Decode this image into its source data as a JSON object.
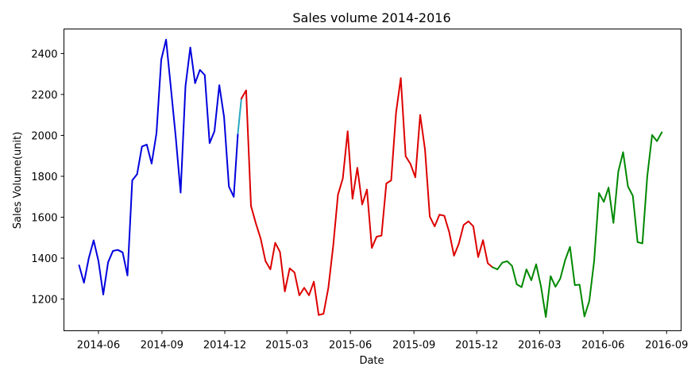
{
  "chart_data": {
    "type": "line",
    "title": "Sales volume 2014-2016",
    "xlabel": "Date",
    "ylabel": "Sales Volume(unit)",
    "grid": false,
    "legend": "none",
    "xlim": [
      "2014-04-12",
      "2016-09-22"
    ],
    "ylim": [
      1045,
      2520
    ],
    "x_ticks": [
      "2014-06",
      "2014-09",
      "2014-12",
      "2015-03",
      "2015-06",
      "2015-09",
      "2015-12",
      "2016-03",
      "2016-06",
      "2016-09"
    ],
    "x_tick_dates": [
      "2014-06-01",
      "2014-09-01",
      "2014-12-01",
      "2015-03-01",
      "2015-06-01",
      "2015-09-01",
      "2015-12-01",
      "2016-03-01",
      "2016-06-01",
      "2016-09-01"
    ],
    "y_ticks": [
      1200,
      1400,
      1600,
      1800,
      2000,
      2200,
      2400
    ],
    "series": [
      {
        "color": "#0000dd",
        "points": [
          [
            "2014-05-04",
            1365
          ],
          [
            "2014-05-11",
            1280
          ],
          [
            "2014-05-18",
            1400
          ],
          [
            "2014-05-25",
            1487
          ],
          [
            "2014-06-01",
            1385
          ],
          [
            "2014-06-08",
            1222
          ],
          [
            "2014-06-15",
            1380
          ],
          [
            "2014-06-22",
            1435
          ],
          [
            "2014-06-29",
            1440
          ],
          [
            "2014-07-06",
            1428
          ],
          [
            "2014-07-13",
            1315
          ],
          [
            "2014-07-20",
            1780
          ],
          [
            "2014-07-27",
            1810
          ],
          [
            "2014-08-03",
            1945
          ],
          [
            "2014-08-10",
            1955
          ],
          [
            "2014-08-17",
            1862
          ],
          [
            "2014-08-24",
            2010
          ],
          [
            "2014-08-31",
            2370
          ],
          [
            "2014-09-07",
            2468
          ],
          [
            "2014-09-14",
            2230
          ],
          [
            "2014-09-21",
            1990
          ],
          [
            "2014-09-28",
            1720
          ],
          [
            "2014-10-05",
            2240
          ],
          [
            "2014-10-12",
            2430
          ],
          [
            "2014-10-19",
            2255
          ],
          [
            "2014-10-26",
            2320
          ],
          [
            "2014-11-02",
            2295
          ],
          [
            "2014-11-09",
            1962
          ],
          [
            "2014-11-16",
            2020
          ],
          [
            "2014-11-23",
            2245
          ],
          [
            "2014-11-30",
            2090
          ],
          [
            "2014-12-07",
            1750
          ],
          [
            "2014-12-14",
            1700
          ],
          [
            "2014-12-20",
            2010
          ]
        ]
      },
      {
        "color": "#2aa7c0",
        "points": [
          [
            "2014-12-20",
            2010
          ],
          [
            "2014-12-25",
            2180
          ]
        ]
      },
      {
        "color": "#dd0000",
        "points": [
          [
            "2014-12-25",
            2180
          ],
          [
            "2015-01-01",
            2220
          ],
          [
            "2015-01-08",
            1655
          ],
          [
            "2015-01-15",
            1570
          ],
          [
            "2015-01-22",
            1495
          ],
          [
            "2015-01-29",
            1385
          ],
          [
            "2015-02-05",
            1345
          ],
          [
            "2015-02-12",
            1475
          ],
          [
            "2015-02-19",
            1430
          ],
          [
            "2015-02-26",
            1237
          ],
          [
            "2015-03-05",
            1350
          ],
          [
            "2015-03-12",
            1330
          ],
          [
            "2015-03-19",
            1218
          ],
          [
            "2015-03-26",
            1255
          ],
          [
            "2015-04-02",
            1218
          ],
          [
            "2015-04-09",
            1285
          ],
          [
            "2015-04-16",
            1122
          ],
          [
            "2015-04-23",
            1128
          ],
          [
            "2015-04-30",
            1255
          ],
          [
            "2015-05-07",
            1460
          ],
          [
            "2015-05-14",
            1710
          ],
          [
            "2015-05-21",
            1790
          ],
          [
            "2015-05-28",
            2020
          ],
          [
            "2015-06-04",
            1690
          ],
          [
            "2015-06-11",
            1842
          ],
          [
            "2015-06-18",
            1662
          ],
          [
            "2015-06-25",
            1735
          ],
          [
            "2015-07-02",
            1450
          ],
          [
            "2015-07-09",
            1505
          ],
          [
            "2015-07-16",
            1510
          ],
          [
            "2015-07-23",
            1765
          ],
          [
            "2015-07-30",
            1780
          ],
          [
            "2015-08-06",
            2110
          ],
          [
            "2015-08-13",
            2280
          ],
          [
            "2015-08-20",
            1898
          ],
          [
            "2015-08-27",
            1860
          ],
          [
            "2015-09-03",
            1795
          ],
          [
            "2015-09-10",
            2100
          ],
          [
            "2015-09-17",
            1930
          ],
          [
            "2015-09-24",
            1603
          ],
          [
            "2015-10-01",
            1555
          ],
          [
            "2015-10-08",
            1612
          ],
          [
            "2015-10-15",
            1607
          ],
          [
            "2015-10-22",
            1528
          ],
          [
            "2015-10-29",
            1412
          ],
          [
            "2015-11-05",
            1470
          ],
          [
            "2015-11-12",
            1562
          ],
          [
            "2015-11-19",
            1580
          ],
          [
            "2015-11-26",
            1555
          ],
          [
            "2015-12-03",
            1405
          ],
          [
            "2015-12-10",
            1488
          ],
          [
            "2015-12-17",
            1375
          ],
          [
            "2015-12-24",
            1355
          ]
        ]
      },
      {
        "color": "#008800",
        "points": [
          [
            "2015-12-24",
            1355
          ],
          [
            "2015-12-31",
            1345
          ],
          [
            "2016-01-07",
            1378
          ],
          [
            "2016-01-14",
            1385
          ],
          [
            "2016-01-21",
            1362
          ],
          [
            "2016-01-28",
            1272
          ],
          [
            "2016-02-04",
            1258
          ],
          [
            "2016-02-11",
            1345
          ],
          [
            "2016-02-18",
            1292
          ],
          [
            "2016-02-25",
            1370
          ],
          [
            "2016-03-03",
            1262
          ],
          [
            "2016-03-10",
            1112
          ],
          [
            "2016-03-17",
            1312
          ],
          [
            "2016-03-24",
            1260
          ],
          [
            "2016-03-31",
            1300
          ],
          [
            "2016-04-07",
            1390
          ],
          [
            "2016-04-14",
            1455
          ],
          [
            "2016-04-21",
            1268
          ],
          [
            "2016-04-28",
            1270
          ],
          [
            "2016-05-05",
            1115
          ],
          [
            "2016-05-12",
            1190
          ],
          [
            "2016-05-19",
            1385
          ],
          [
            "2016-05-26",
            1718
          ],
          [
            "2016-06-02",
            1675
          ],
          [
            "2016-06-09",
            1745
          ],
          [
            "2016-06-16",
            1572
          ],
          [
            "2016-06-23",
            1822
          ],
          [
            "2016-06-30",
            1918
          ],
          [
            "2016-07-07",
            1750
          ],
          [
            "2016-07-14",
            1705
          ],
          [
            "2016-07-21",
            1478
          ],
          [
            "2016-07-28",
            1472
          ],
          [
            "2016-08-04",
            1800
          ],
          [
            "2016-08-11",
            2002
          ],
          [
            "2016-08-18",
            1972
          ],
          [
            "2016-08-25",
            2015
          ]
        ]
      }
    ]
  }
}
